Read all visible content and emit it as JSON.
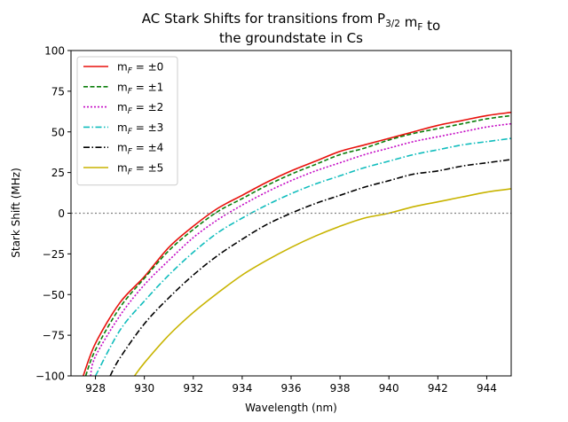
{
  "chart_data": {
    "type": "line",
    "title_lines": [
      [
        "AC Stark Shifts for transitions from P",
        {
          "sub": "3/2"
        },
        " m",
        {
          "sub": "F"
        },
        " to"
      ],
      [
        "the groundstate in Cs"
      ]
    ],
    "xlabel": "Wavelength (nm)",
    "ylabel": "Stark Shift (MHz)",
    "xlim": [
      927.0,
      945.0
    ],
    "ylim": [
      -100,
      100
    ],
    "xticks": [
      928,
      930,
      932,
      934,
      936,
      938,
      940,
      942,
      944
    ],
    "yticks": [
      -100,
      -75,
      -50,
      -25,
      0,
      25,
      50,
      75,
      100
    ],
    "reference_line": {
      "y": 0,
      "style": "dotted",
      "color": "#808080"
    },
    "legend_position": "top-left",
    "grid": false,
    "series": [
      {
        "label_main": "m",
        "label_sub": "F",
        "label_rest": " = ±0",
        "color": "#e8110c",
        "dash": "solid",
        "points": [
          [
            927.5,
            -100
          ],
          [
            928,
            -80
          ],
          [
            929,
            -55
          ],
          [
            930,
            -39
          ],
          [
            931,
            -21
          ],
          [
            932,
            -8
          ],
          [
            933,
            3
          ],
          [
            934,
            11
          ],
          [
            935,
            19
          ],
          [
            936,
            26
          ],
          [
            937,
            32
          ],
          [
            938,
            38
          ],
          [
            939,
            42
          ],
          [
            940,
            46
          ],
          [
            941,
            50
          ],
          [
            942,
            54
          ],
          [
            943,
            57
          ],
          [
            944,
            60
          ],
          [
            945,
            62
          ]
        ]
      },
      {
        "label_main": "m",
        "label_sub": "F",
        "label_rest": " = ±1",
        "color": "#0a7e0a",
        "dash": "dashed",
        "points": [
          [
            927.6,
            -100
          ],
          [
            928,
            -84
          ],
          [
            929,
            -58
          ],
          [
            930,
            -40
          ],
          [
            931,
            -23
          ],
          [
            932,
            -10
          ],
          [
            933,
            1
          ],
          [
            934,
            9
          ],
          [
            935,
            17
          ],
          [
            936,
            24
          ],
          [
            937,
            30
          ],
          [
            938,
            36
          ],
          [
            939,
            40
          ],
          [
            940,
            45
          ],
          [
            941,
            49
          ],
          [
            942,
            52
          ],
          [
            943,
            55
          ],
          [
            944,
            58
          ],
          [
            945,
            60
          ]
        ]
      },
      {
        "label_main": "m",
        "label_sub": "F",
        "label_rest": " = ±2",
        "color": "#c40ac4",
        "dash": "dotted",
        "points": [
          [
            927.8,
            -100
          ],
          [
            928,
            -88
          ],
          [
            929,
            -63
          ],
          [
            930,
            -44
          ],
          [
            931,
            -29
          ],
          [
            932,
            -15
          ],
          [
            933,
            -4
          ],
          [
            934,
            5
          ],
          [
            935,
            13
          ],
          [
            936,
            20
          ],
          [
            937,
            26
          ],
          [
            938,
            31
          ],
          [
            939,
            36
          ],
          [
            940,
            40
          ],
          [
            941,
            44
          ],
          [
            942,
            47
          ],
          [
            943,
            50
          ],
          [
            944,
            53
          ],
          [
            945,
            55
          ]
        ]
      },
      {
        "label_main": "m",
        "label_sub": "F",
        "label_rest": " = ±3",
        "color": "#11bdbd",
        "dash": "dashdot",
        "points": [
          [
            928.0,
            -100
          ],
          [
            929,
            -72
          ],
          [
            930,
            -54
          ],
          [
            931,
            -38
          ],
          [
            932,
            -24
          ],
          [
            933,
            -12
          ],
          [
            934,
            -3
          ],
          [
            935,
            5
          ],
          [
            936,
            12
          ],
          [
            937,
            18
          ],
          [
            938,
            23
          ],
          [
            939,
            28
          ],
          [
            940,
            32
          ],
          [
            941,
            36
          ],
          [
            942,
            39
          ],
          [
            943,
            42
          ],
          [
            944,
            44
          ],
          [
            945,
            46
          ]
        ]
      },
      {
        "label_main": "m",
        "label_sub": "F",
        "label_rest": " = ±4",
        "color": "#000000",
        "dash": "dashdot",
        "points": [
          [
            928.6,
            -100
          ],
          [
            929,
            -89
          ],
          [
            930,
            -68
          ],
          [
            931,
            -52
          ],
          [
            932,
            -38
          ],
          [
            933,
            -26
          ],
          [
            934,
            -16
          ],
          [
            935,
            -7
          ],
          [
            936,
            0
          ],
          [
            937,
            6
          ],
          [
            938,
            11
          ],
          [
            939,
            16
          ],
          [
            940,
            20
          ],
          [
            941,
            24
          ],
          [
            942,
            26
          ],
          [
            943,
            29
          ],
          [
            944,
            31
          ],
          [
            945,
            33
          ]
        ]
      },
      {
        "label_main": "m",
        "label_sub": "F",
        "label_rest": " = ±5",
        "color": "#c8b400",
        "dash": "solid",
        "points": [
          [
            929.6,
            -100
          ],
          [
            930,
            -92
          ],
          [
            931,
            -75
          ],
          [
            932,
            -61
          ],
          [
            933,
            -49
          ],
          [
            934,
            -38
          ],
          [
            935,
            -29
          ],
          [
            936,
            -21
          ],
          [
            937,
            -14
          ],
          [
            938,
            -8
          ],
          [
            939,
            -3
          ],
          [
            940,
            0
          ],
          [
            941,
            4
          ],
          [
            942,
            7
          ],
          [
            943,
            10
          ],
          [
            944,
            13
          ],
          [
            945,
            15
          ]
        ]
      }
    ]
  }
}
